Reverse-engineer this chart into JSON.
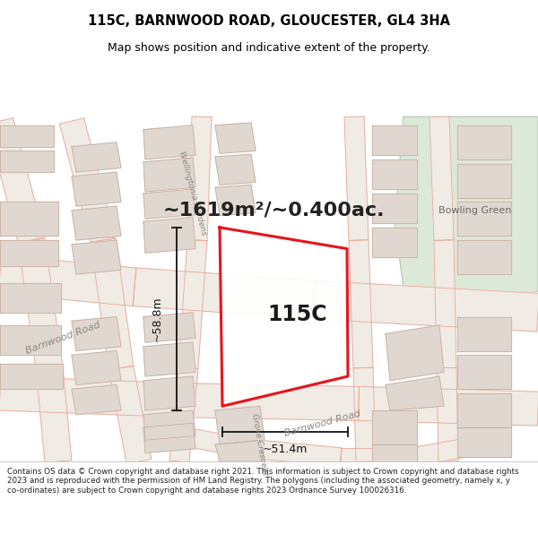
{
  "title_line1": "115C, BARNWOOD ROAD, GLOUCESTER, GL4 3HA",
  "title_line2": "Map shows position and indicative extent of the property.",
  "area_text": "~1619m²/~0.400ac.",
  "plot_label": "115C",
  "dim_width": "~51.4m",
  "dim_height": "~58.8m",
  "label_bowling_green": "Bowling Green",
  "label_barnwood_road": "Barnwood Road",
  "label_wellingtonia": "Wellingtonia Gardens",
  "label_grove": "Grove Crescent",
  "footer_text": "Contains OS data © Crown copyright and database right 2021. This information is subject to Crown copyright and database rights 2023 and is reproduced with the permission of HM Land Registry. The polygons (including the associated geometry, namely x, y co-ordinates) are subject to Crown copyright and database rights 2023 Ordnance Survey 100026316.",
  "map_bg": "#f7f5f2",
  "road_fill": "#f0ebe4",
  "road_line": "#e8a89a",
  "plot_fill": "#ffffff",
  "plot_edge": "#e8141c",
  "plot_edge_width": 2.2,
  "building_fill": "#e0d8d0",
  "building_edge": "#c8a898",
  "green_fill": "#dce8d8",
  "green_edge": "#b8ccb0",
  "dim_color": "#111111",
  "text_color": "#222222",
  "road_label_color": "#888888",
  "white": "#ffffff"
}
